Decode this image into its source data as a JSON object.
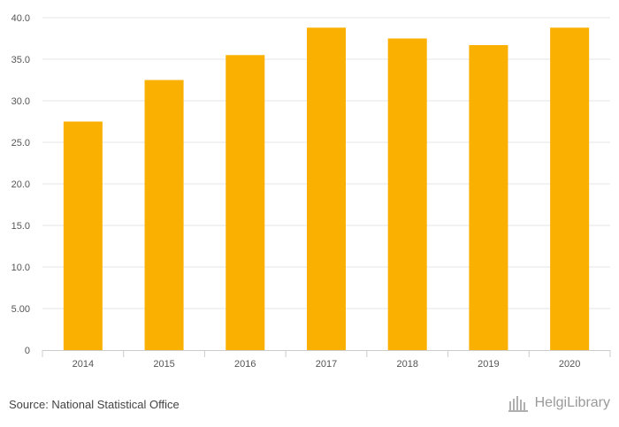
{
  "chart_data": {
    "type": "bar",
    "categories": [
      "2014",
      "2015",
      "2016",
      "2017",
      "2018",
      "2019",
      "2020"
    ],
    "values": [
      27.5,
      32.5,
      35.5,
      38.8,
      37.5,
      36.7,
      38.8
    ],
    "ylim": [
      0,
      40
    ],
    "yticks": [
      "0",
      "5.00",
      "10.0",
      "15.0",
      "20.0",
      "25.0",
      "30.0",
      "35.0",
      "40.0"
    ],
    "ytick_values": [
      0,
      5,
      10,
      15,
      20,
      25,
      30,
      35,
      40
    ],
    "title": "",
    "xlabel": "",
    "ylabel": "",
    "grid": true,
    "bar_color": "#f9b000"
  },
  "footer": {
    "source": "Source: National Statistical Office",
    "brand": "HelgiLibrary"
  }
}
